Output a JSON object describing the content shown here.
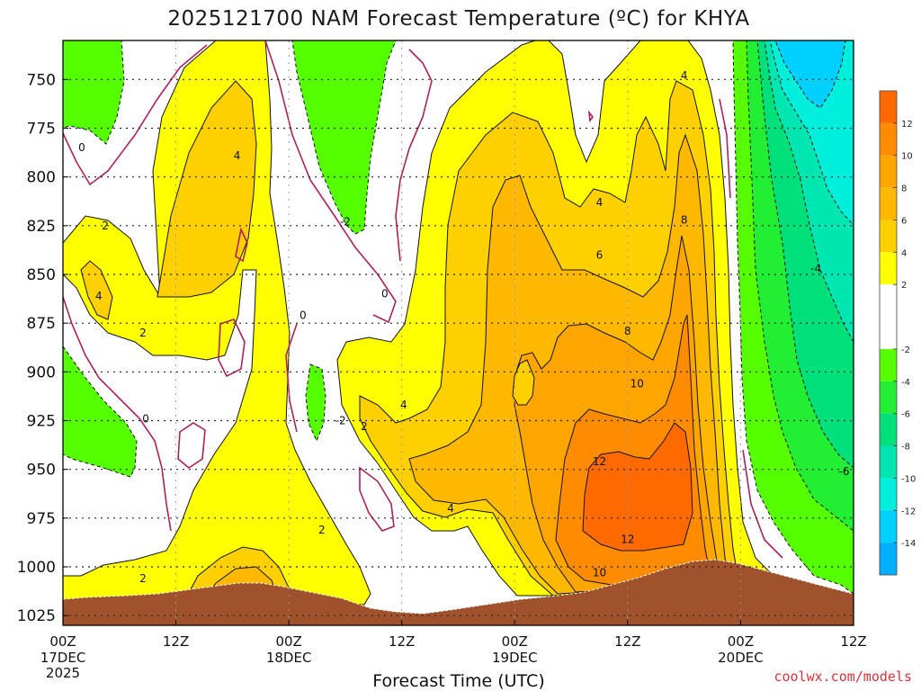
{
  "chart_data": {
    "type": "heatmap",
    "title": "2025121700 NAM Forecast Temperature (ºC) for KHYA",
    "xlabel": "Forecast Time (UTC)",
    "ylabel": "",
    "x_ticks": [
      {
        "hour": 0,
        "label": "00Z",
        "sub": "17DEC",
        "sub2": "2025"
      },
      {
        "hour": 12,
        "label": "12Z",
        "sub": "",
        "sub2": ""
      },
      {
        "hour": 24,
        "label": "00Z",
        "sub": "18DEC",
        "sub2": ""
      },
      {
        "hour": 36,
        "label": "12Z",
        "sub": "",
        "sub2": ""
      },
      {
        "hour": 48,
        "label": "00Z",
        "sub": "19DEC",
        "sub2": ""
      },
      {
        "hour": 60,
        "label": "12Z",
        "sub": "",
        "sub2": ""
      },
      {
        "hour": 72,
        "label": "00Z",
        "sub": "20DEC",
        "sub2": ""
      },
      {
        "hour": 84,
        "label": "12Z",
        "sub": "",
        "sub2": ""
      }
    ],
    "xlim": [
      0,
      84
    ],
    "y_ticks": [
      750,
      775,
      800,
      825,
      850,
      875,
      900,
      925,
      950,
      975,
      1000,
      1025
    ],
    "ylim": [
      1030,
      730
    ],
    "colorbar": {
      "ticks": [
        12,
        10,
        8,
        6,
        4,
        2,
        -2,
        -4,
        -6,
        -8,
        -10,
        -12,
        -14
      ],
      "bands": [
        {
          "lo": 12,
          "hi": 14,
          "color": "#ff6a00"
        },
        {
          "lo": 10,
          "hi": 12,
          "color": "#ff8c00"
        },
        {
          "lo": 8,
          "hi": 10,
          "color": "#ffa500"
        },
        {
          "lo": 6,
          "hi": 8,
          "color": "#ffb800"
        },
        {
          "lo": 4,
          "hi": 6,
          "color": "#ffd000"
        },
        {
          "lo": 2,
          "hi": 4,
          "color": "#ffff00"
        },
        {
          "lo": -2,
          "hi": 2,
          "color": "#ffffff"
        },
        {
          "lo": -4,
          "hi": -2,
          "color": "#55ff00"
        },
        {
          "lo": -6,
          "hi": -4,
          "color": "#22ee33"
        },
        {
          "lo": -8,
          "hi": -6,
          "color": "#00e07a"
        },
        {
          "lo": -10,
          "hi": -8,
          "color": "#00e6b0"
        },
        {
          "lo": -12,
          "hi": -10,
          "color": "#00eedc"
        },
        {
          "lo": -14,
          "hi": -12,
          "color": "#00d0ff"
        },
        {
          "lo": -16,
          "hi": -14,
          "color": "#00b0ff"
        }
      ]
    },
    "contour_labels": [
      {
        "text": "0",
        "hour": 2.0,
        "p": 785
      },
      {
        "text": "4",
        "hour": 18.5,
        "p": 789
      },
      {
        "text": "2",
        "hour": 4.5,
        "p": 825
      },
      {
        "text": "4",
        "hour": 3.8,
        "p": 861
      },
      {
        "text": "2",
        "hour": 8.5,
        "p": 880
      },
      {
        "text": "0",
        "hour": 8.8,
        "p": 924
      },
      {
        "text": "2",
        "hour": 8.5,
        "p": 1006
      },
      {
        "text": "-2",
        "hour": 29.5,
        "p": 925
      },
      {
        "text": "2",
        "hour": 32.0,
        "p": 928
      },
      {
        "text": "0",
        "hour": 25.5,
        "p": 871
      },
      {
        "text": "-2",
        "hour": 30.0,
        "p": 823
      },
      {
        "text": "0",
        "hour": 34.2,
        "p": 860
      },
      {
        "text": "2",
        "hour": 27.5,
        "p": 981
      },
      {
        "text": "4",
        "hour": 36.2,
        "p": 917
      },
      {
        "text": "4",
        "hour": 41.2,
        "p": 970
      },
      {
        "text": "4",
        "hour": 57.0,
        "p": 813
      },
      {
        "text": "6",
        "hour": 57.0,
        "p": 840
      },
      {
        "text": "8",
        "hour": 60.0,
        "p": 879
      },
      {
        "text": "10",
        "hour": 61.0,
        "p": 906
      },
      {
        "text": "12",
        "hour": 57.0,
        "p": 946
      },
      {
        "text": "12",
        "hour": 60.0,
        "p": 986
      },
      {
        "text": "10",
        "hour": 57.0,
        "p": 1003
      },
      {
        "text": "4",
        "hour": 66.0,
        "p": 748
      },
      {
        "text": "8",
        "hour": 66.0,
        "p": 822
      },
      {
        "text": "-4",
        "hour": 80.0,
        "p": 847
      },
      {
        "text": "-6",
        "hour": 83.0,
        "p": 951
      }
    ]
  },
  "credit": "coolwx.com/models"
}
